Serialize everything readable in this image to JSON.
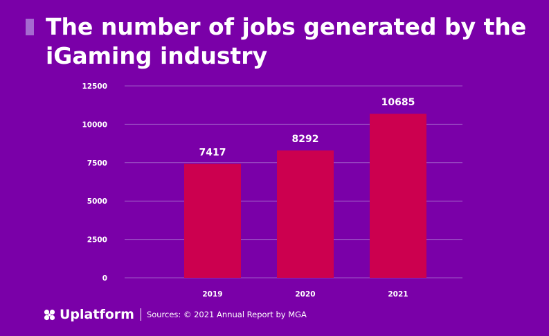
{
  "theme": {
    "background": "#7a00a8",
    "bar_color": "#cc004f",
    "grid_color": "#a05ac8",
    "accent_color": "#a56ad0",
    "text_color": "#ffffff"
  },
  "header": {
    "title": "The number of jobs generated by the iGaming industry"
  },
  "footer": {
    "brand": "Uplatform",
    "brand_icon": "clover-logo-icon",
    "source": "Sources: © 2021 Annual Report by MGA"
  },
  "chart_data": {
    "type": "bar",
    "categories": [
      "2019",
      "2020",
      "2021"
    ],
    "values": [
      7417,
      8292,
      10685
    ],
    "data_labels": [
      "7417",
      "8292",
      "10685"
    ],
    "yticks": [
      0,
      2500,
      5000,
      7500,
      10000,
      12500
    ],
    "ylim": [
      0,
      12500
    ],
    "grid": true,
    "legend": "none"
  }
}
